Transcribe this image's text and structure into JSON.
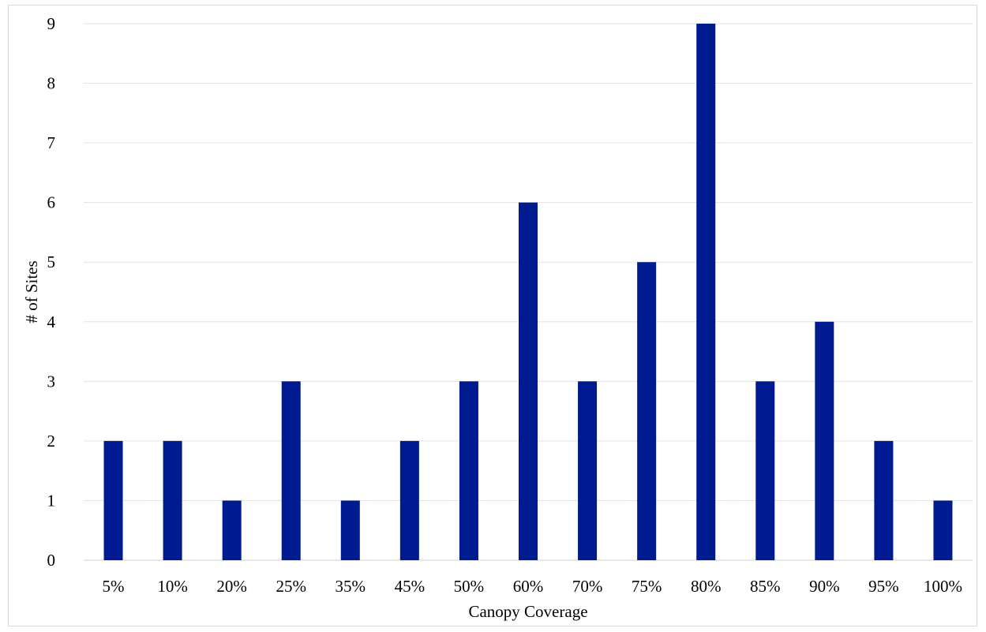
{
  "chart_data": {
    "type": "bar",
    "title": "",
    "xlabel": "Canopy Coverage",
    "ylabel": "# of Sites",
    "categories": [
      "5%",
      "10%",
      "20%",
      "25%",
      "35%",
      "45%",
      "50%",
      "60%",
      "70%",
      "75%",
      "80%",
      "85%",
      "90%",
      "95%",
      "100%"
    ],
    "values": [
      2,
      2,
      1,
      3,
      1,
      2,
      3,
      6,
      3,
      5,
      9,
      3,
      4,
      2,
      1
    ],
    "ylim": [
      0,
      9
    ],
    "yticks": [
      "0",
      "1",
      "2",
      "3",
      "4",
      "5",
      "6",
      "7",
      "8",
      "9"
    ],
    "grid": true,
    "legend": "none",
    "colors": {
      "bar": "#001a8f",
      "grid": "#e3e3e3",
      "frame": "#d9d9d9"
    }
  }
}
